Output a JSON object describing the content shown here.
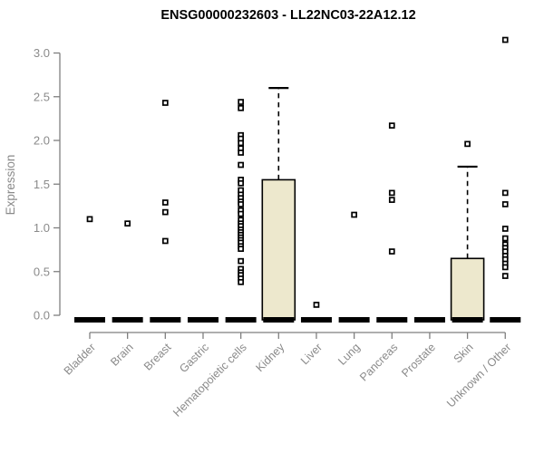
{
  "chart_data": {
    "type": "boxplot",
    "title": "ENSG00000232603 - LL22NC03-22A12.12",
    "ylabel": "Expression",
    "xlabel": "",
    "ylim": [
      0.0,
      3.0
    ],
    "yticks": [
      0.0,
      0.5,
      1.0,
      1.5,
      2.0,
      2.5,
      3.0
    ],
    "ytick_labels": [
      "0.0",
      "0.5",
      "1.0",
      "1.5",
      "2.0",
      "2.5",
      "3.0"
    ],
    "grid": "off",
    "legend": "none",
    "categories": [
      "Bladder",
      "Brain",
      "Breast",
      "Gastric",
      "Hematopoietic cells",
      "Kidney",
      "Liver",
      "Lung",
      "Pancreas",
      "Prostate",
      "Skin",
      "Unknown / Other"
    ],
    "series": [
      {
        "category": "Bladder",
        "box": {
          "q1": 0,
          "median": 0,
          "q3": 0,
          "whisker_low": 0,
          "whisker_high": 0
        },
        "points": [
          1.1
        ]
      },
      {
        "category": "Brain",
        "box": {
          "q1": 0,
          "median": 0,
          "q3": 0,
          "whisker_low": 0,
          "whisker_high": 0
        },
        "points": [
          1.05
        ]
      },
      {
        "category": "Breast",
        "box": {
          "q1": 0,
          "median": 0,
          "q3": 0,
          "whisker_low": 0,
          "whisker_high": 0
        },
        "points": [
          2.43,
          1.29,
          1.18,
          0.85
        ]
      },
      {
        "category": "Gastric",
        "box": {
          "q1": 0,
          "median": 0,
          "q3": 0,
          "whisker_low": 0,
          "whisker_high": 0
        },
        "points": []
      },
      {
        "category": "Hematopoietic cells",
        "box": {
          "q1": 0,
          "median": 0,
          "q3": 0,
          "whisker_low": 0,
          "whisker_high": 0
        },
        "points": [
          2.44,
          2.37,
          2.06,
          2.02,
          1.97,
          1.91,
          1.86,
          1.72,
          1.55,
          1.51,
          1.43,
          1.38,
          1.34,
          1.3,
          1.27,
          1.2,
          1.16,
          1.09,
          1.05,
          1.02,
          0.98,
          0.95,
          0.92,
          0.89,
          0.86,
          0.83,
          0.79,
          0.76,
          0.62,
          0.53,
          0.49,
          0.46,
          0.42,
          0.38
        ]
      },
      {
        "category": "Kidney",
        "box": {
          "q1": 0,
          "median": 0,
          "q3": 1.55,
          "whisker_low": 0,
          "whisker_high": 2.6
        },
        "points": []
      },
      {
        "category": "Liver",
        "box": {
          "q1": 0,
          "median": 0,
          "q3": 0,
          "whisker_low": 0,
          "whisker_high": 0
        },
        "points": [
          0.12
        ]
      },
      {
        "category": "Lung",
        "box": {
          "q1": 0,
          "median": 0,
          "q3": 0,
          "whisker_low": 0,
          "whisker_high": 0
        },
        "points": [
          1.15
        ]
      },
      {
        "category": "Pancreas",
        "box": {
          "q1": 0,
          "median": 0,
          "q3": 0,
          "whisker_low": 0,
          "whisker_high": 0
        },
        "points": [
          2.17,
          1.4,
          1.32,
          0.73
        ]
      },
      {
        "category": "Prostate",
        "box": {
          "q1": 0,
          "median": 0,
          "q3": 0,
          "whisker_low": 0,
          "whisker_high": 0
        },
        "points": []
      },
      {
        "category": "Skin",
        "box": {
          "q1": 0,
          "median": 0,
          "q3": 0.65,
          "whisker_low": 0,
          "whisker_high": 1.7
        },
        "points": [
          1.96
        ]
      },
      {
        "category": "Unknown / Other",
        "box": {
          "q1": 0,
          "median": 0,
          "q3": 0,
          "whisker_low": 0,
          "whisker_high": 0
        },
        "points": [
          3.15,
          1.4,
          1.27,
          0.99,
          0.88,
          0.81,
          0.77,
          0.73,
          0.68,
          0.64,
          0.59,
          0.55,
          0.45
        ]
      }
    ],
    "colors": {
      "background": "#ffffff",
      "box_fill": "#EDE8CD",
      "box_stroke": "#000000",
      "median_color": "#000000",
      "whisker_color": "#000000",
      "point_stroke": "#000000",
      "axis_line": "#7f7f7f",
      "axis_text": "#8a8a8a",
      "title_color": "#000000"
    }
  }
}
